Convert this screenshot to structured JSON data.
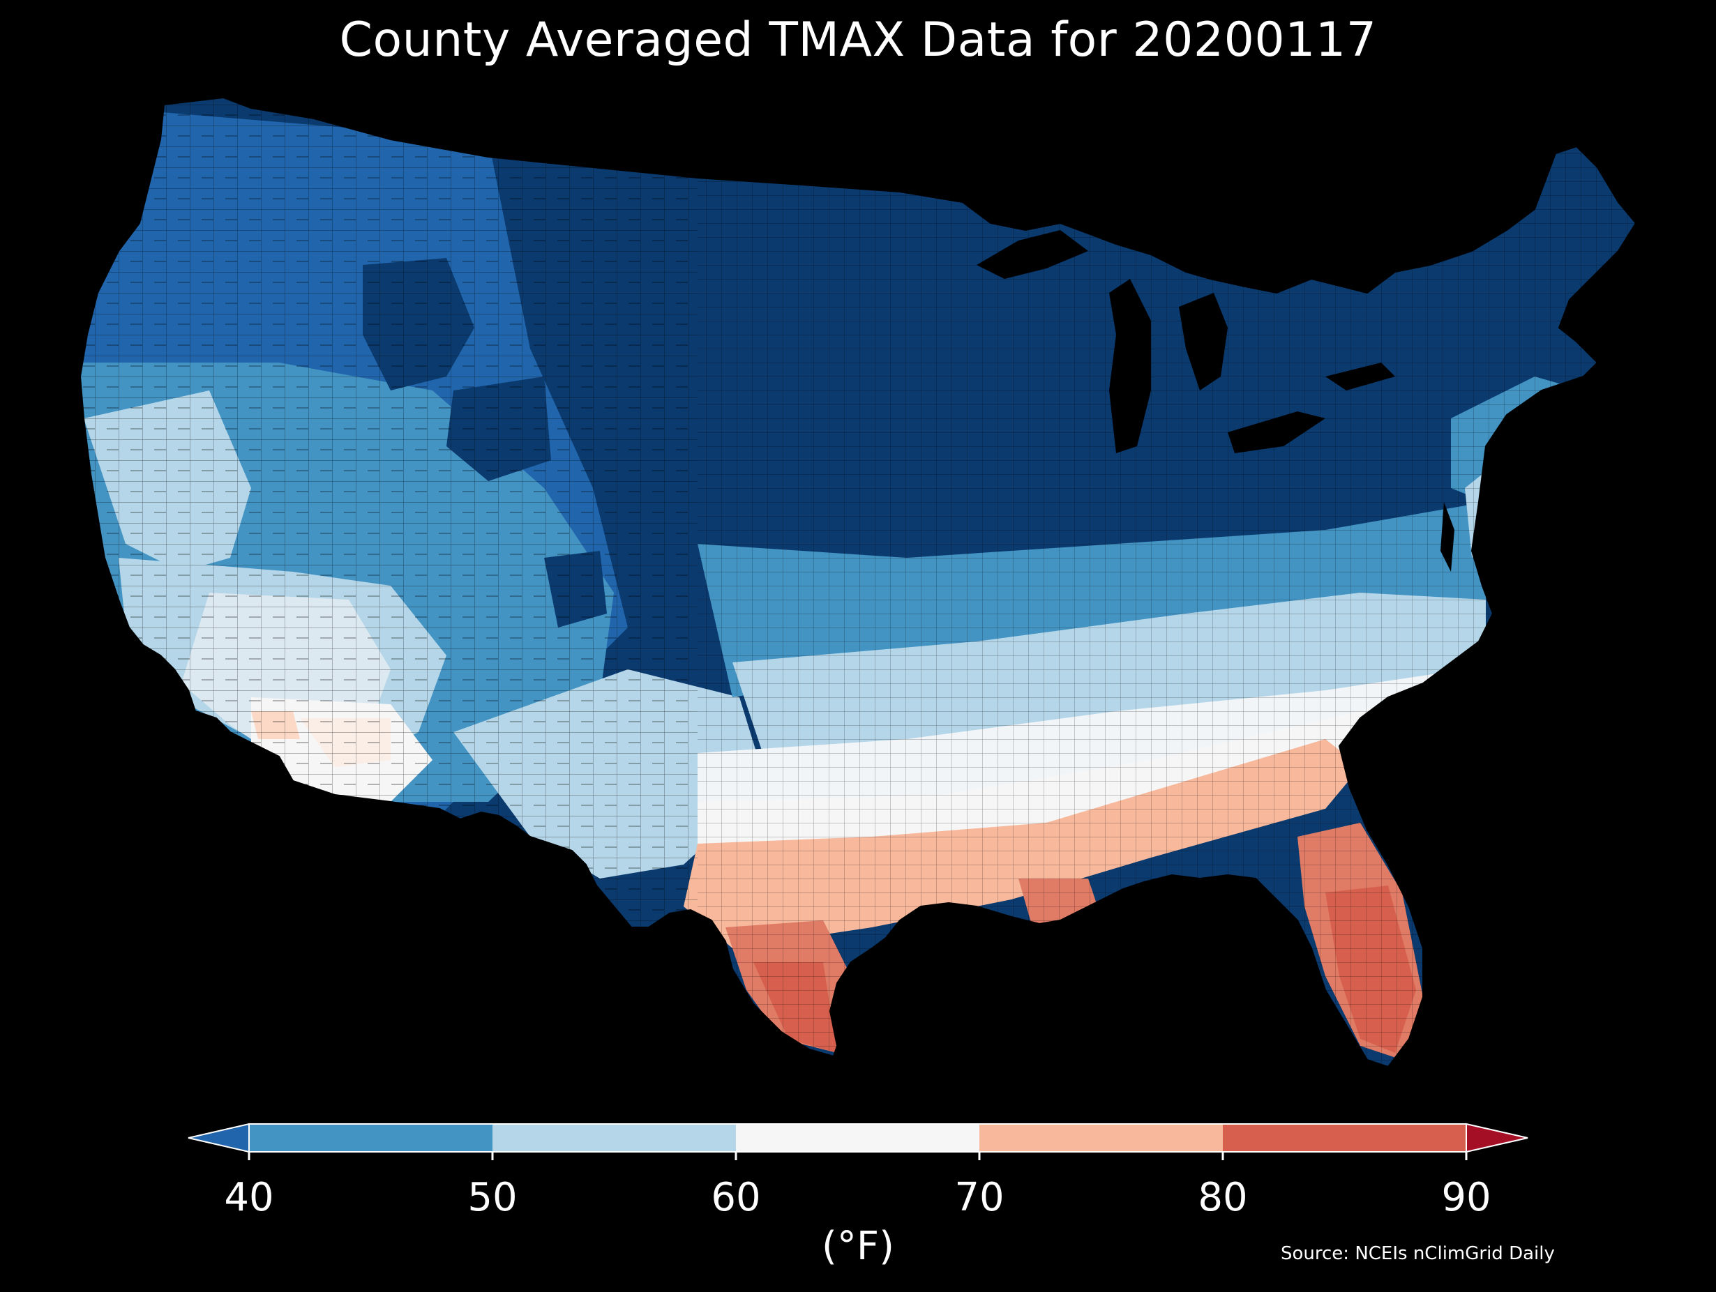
{
  "title": "County Averaged TMAX Data for 20200117",
  "colorbar": {
    "label": "(°F)",
    "ticks": [
      "40",
      "50",
      "60",
      "70",
      "80",
      "90"
    ],
    "bins": [
      {
        "range": "<40",
        "color": "#2166ac",
        "extend": "min"
      },
      {
        "range": "40-50",
        "color": "#4393c3"
      },
      {
        "range": "50-60",
        "color": "#b4d6e8"
      },
      {
        "range": "60-70",
        "color": "#f6f6f6"
      },
      {
        "range": "70-80",
        "color": "#f7b89c"
      },
      {
        "range": "80-90",
        "color": "#d6604d"
      },
      {
        "range": ">90",
        "color": "#a50f26",
        "extend": "max"
      }
    ]
  },
  "source": "Source: NCEIs nClimGrid Daily",
  "map": {
    "region": "Contiguous United States",
    "variable": "TMAX",
    "date": "20200117",
    "units": "°F",
    "regional_pattern": [
      {
        "region": "Northern Plains / Upper Midwest / Great Lakes / Northeast",
        "band": "<40",
        "color": "#0b3a6e"
      },
      {
        "region": "Rockies / Pacific Northwest",
        "band": "<40 to 40-50",
        "color": "#2166ac"
      },
      {
        "region": "Great Basin / Central Plains / Mid-Atlantic",
        "band": "40-50",
        "color": "#4393c3"
      },
      {
        "region": "California / Southwest / Tennessee Valley",
        "band": "50-60",
        "color": "#b4d6e8"
      },
      {
        "region": "Southern Arizona / Deep South interior",
        "band": "60-70",
        "color": "#f6f6f6"
      },
      {
        "region": "Gulf Coast / South Texas / Georgia",
        "band": "70-80",
        "color": "#f7b89c"
      },
      {
        "region": "Florida peninsula / Rio Grande Valley",
        "band": "80-90",
        "color": "#d6604d"
      }
    ]
  }
}
